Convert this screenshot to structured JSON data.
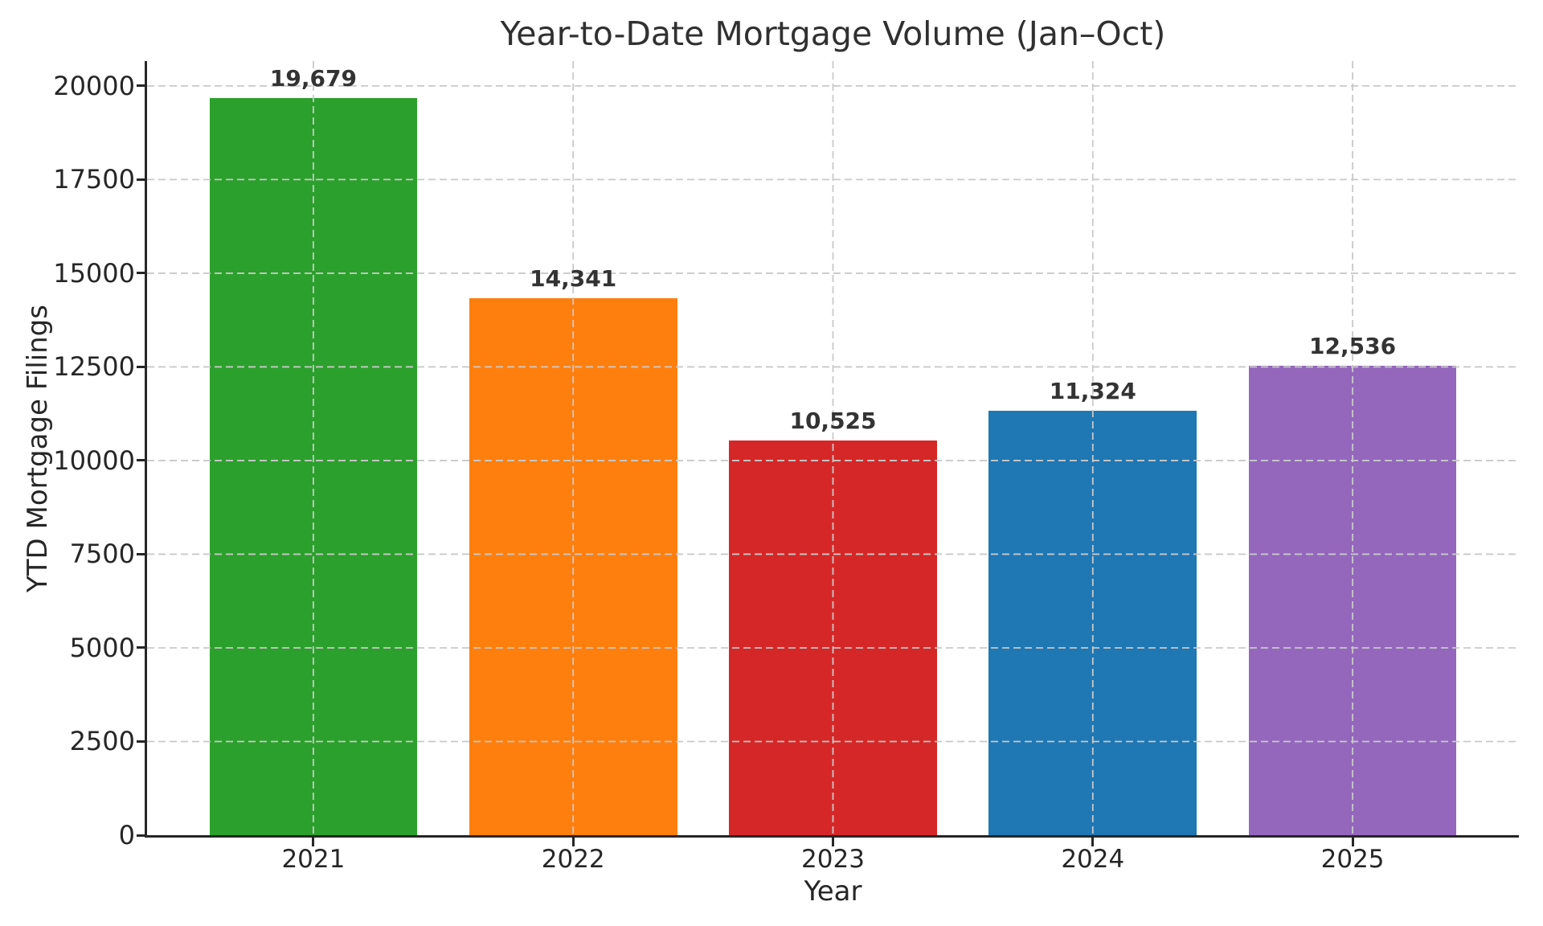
{
  "chart_data": {
    "type": "bar",
    "title": "Year-to-Date Mortgage Volume (Jan–Oct)",
    "xlabel": "Year",
    "ylabel": "YTD Mortgage Filings",
    "categories": [
      "2021",
      "2022",
      "2023",
      "2024",
      "2025"
    ],
    "values": [
      19679,
      14341,
      10525,
      11324,
      12536
    ],
    "value_labels": [
      "19,679",
      "14,341",
      "10,525",
      "11,324",
      "12,536"
    ],
    "bar_colors": [
      "#2ca02c",
      "#ff7f0e",
      "#d62728",
      "#1f77b4",
      "#9467bd"
    ],
    "yticks": [
      0,
      2500,
      5000,
      7500,
      10000,
      12500,
      15000,
      17500,
      20000
    ],
    "ytick_labels": [
      "0",
      "2500",
      "5000",
      "7500",
      "10000",
      "12500",
      "15000",
      "17500",
      "20000"
    ],
    "ylim": [
      0,
      20663
    ],
    "grid": {
      "style": "dashed",
      "axes": "both",
      "above_bars": true
    },
    "legend": "none",
    "colors": {
      "grid": "#c9c9c9",
      "spine": "#262626",
      "tick_text": "#262626",
      "title_text": "#303030",
      "value_label_text": "#333333",
      "background": "#ffffff"
    }
  }
}
